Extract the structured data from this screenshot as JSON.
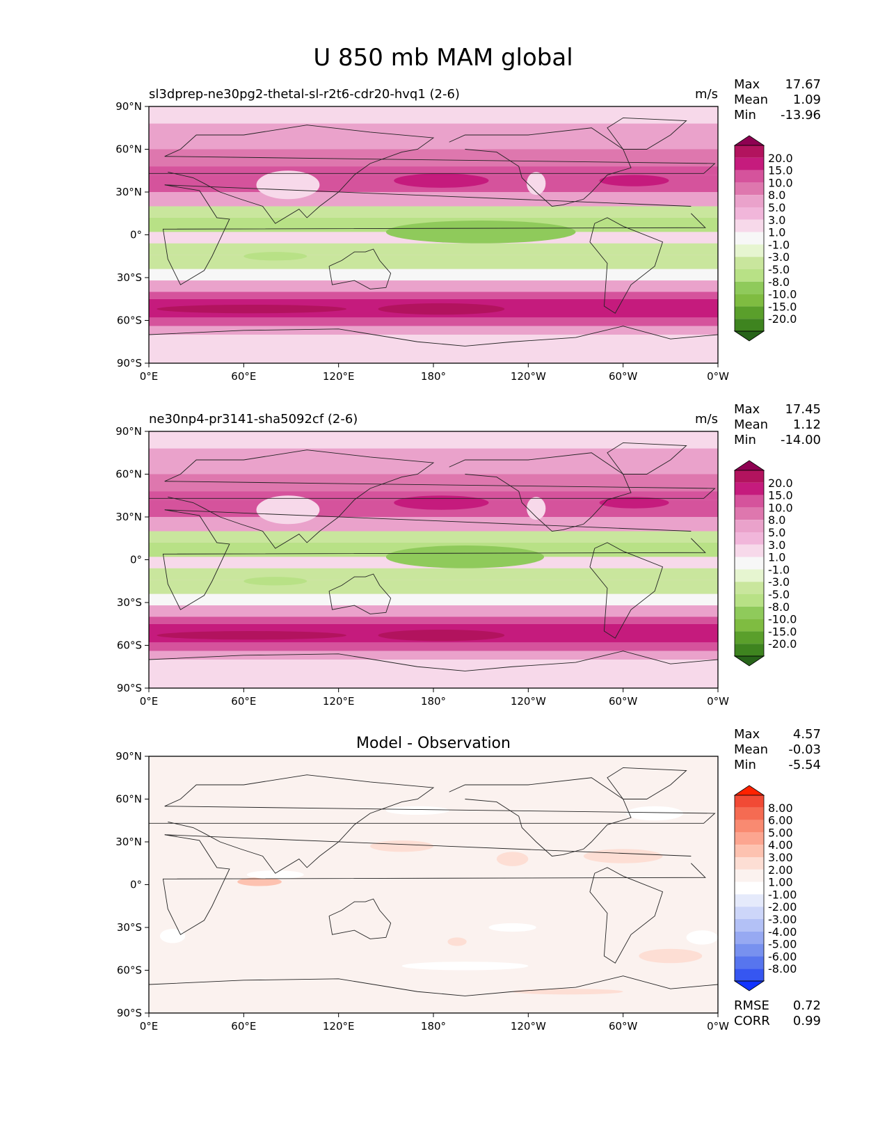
{
  "figure": {
    "title": "U 850 mb MAM global"
  },
  "chart_data": [
    {
      "type": "heatmap",
      "title": "sl3dprep-ne30pg2-thetal-sl-r2t6-cdr20-hvq1 (2-6)",
      "units": "m/s",
      "stats": {
        "max_label": "Max",
        "max": "17.67",
        "mean_label": "Mean",
        "mean": "1.09",
        "min_label": "Min",
        "min": "-13.96"
      },
      "x_ticks": [
        "0°E",
        "60°E",
        "120°E",
        "180°",
        "120°W",
        "60°W",
        "0°W"
      ],
      "y_ticks": [
        "90°N",
        "60°N",
        "30°N",
        "0°",
        "30°S",
        "60°S",
        "90°S"
      ],
      "xlim": [
        0,
        360
      ],
      "ylim": [
        -90,
        90
      ],
      "colorbar": {
        "levels": [
          "20.0",
          "15.0",
          "10.0",
          "8.0",
          "5.0",
          "3.0",
          "1.0",
          "-1.0",
          "-3.0",
          "-5.0",
          "-8.0",
          "-10.0",
          "-15.0",
          "-20.0"
        ],
        "colors": [
          "#8e0152",
          "#b2135e",
          "#c51b7d",
          "#d5539c",
          "#de77ae",
          "#eaa2cb",
          "#f1b6da",
          "#f7d9ea",
          "#f7f7f7",
          "#e6f5d0",
          "#c9e69d",
          "#b8e186",
          "#8fca5b",
          "#7fbc41",
          "#5a9f2b",
          "#3e841f",
          "#276419"
        ],
        "extend": "both"
      },
      "bands": [
        {
          "lat": [
            78,
            90
          ],
          "value": 0.5
        },
        {
          "lat": [
            60,
            78
          ],
          "value": 4
        },
        {
          "lat": [
            48,
            60
          ],
          "value": 7
        },
        {
          "lat": [
            42,
            48
          ],
          "value": 9
        },
        {
          "lat": [
            30,
            42
          ],
          "value": 8
        },
        {
          "lat": [
            20,
            30
          ],
          "value": 4
        },
        {
          "lat": [
            12,
            20
          ],
          "value": -6
        },
        {
          "lat": [
            2,
            12
          ],
          "value": -9
        },
        {
          "lat": [
            -6,
            2
          ],
          "value": 0
        },
        {
          "lat": [
            -14,
            -6
          ],
          "value": -6
        },
        {
          "lat": [
            -24,
            -14
          ],
          "value": -8
        },
        {
          "lat": [
            -32,
            -24
          ],
          "value": -3
        },
        {
          "lat": [
            -40,
            -32
          ],
          "value": 4
        },
        {
          "lat": [
            -45,
            -40
          ],
          "value": 9
        },
        {
          "lat": [
            -58,
            -45
          ],
          "value": 13
        },
        {
          "lat": [
            -64,
            -58
          ],
          "value": 9
        },
        {
          "lat": [
            -70,
            -64
          ],
          "value": 4
        },
        {
          "lat": [
            -90,
            -70
          ],
          "value": 0
        }
      ],
      "blobs": [
        {
          "lon": 185,
          "lat": 38,
          "rx": 30,
          "ry": 5,
          "value": 13
        },
        {
          "lon": 307,
          "lat": 38,
          "rx": 22,
          "ry": 4,
          "value": 13
        },
        {
          "lon": 88,
          "lat": 35,
          "rx": 20,
          "ry": 10,
          "value": 0
        },
        {
          "lon": 245,
          "lat": 36,
          "rx": 6,
          "ry": 8,
          "value": 0
        },
        {
          "lon": 210,
          "lat": 2,
          "rx": 60,
          "ry": 8,
          "value": -12
        },
        {
          "lon": 185,
          "lat": -52,
          "rx": 40,
          "ry": 4,
          "value": 16
        },
        {
          "lon": 65,
          "lat": -52,
          "rx": 60,
          "ry": 3,
          "value": 16
        },
        {
          "lon": 80,
          "lat": -15,
          "rx": 20,
          "ry": 3,
          "value": -10
        }
      ]
    },
    {
      "type": "heatmap",
      "title": "ne30np4-pr3141-sha5092cf (2-6)",
      "units": "m/s",
      "stats": {
        "max_label": "Max",
        "max": "17.45",
        "mean_label": "Mean",
        "mean": "1.12",
        "min_label": "Min",
        "min": "-14.00"
      },
      "x_ticks": [
        "0°E",
        "60°E",
        "120°E",
        "180°",
        "120°W",
        "60°W",
        "0°W"
      ],
      "y_ticks": [
        "90°N",
        "60°N",
        "30°N",
        "0°",
        "30°S",
        "60°S",
        "90°S"
      ],
      "xlim": [
        0,
        360
      ],
      "ylim": [
        -90,
        90
      ],
      "colorbar": {
        "levels": [
          "20.0",
          "15.0",
          "10.0",
          "8.0",
          "5.0",
          "3.0",
          "1.0",
          "-1.0",
          "-3.0",
          "-5.0",
          "-8.0",
          "-10.0",
          "-15.0",
          "-20.0"
        ],
        "colors": [
          "#8e0152",
          "#b2135e",
          "#c51b7d",
          "#d5539c",
          "#de77ae",
          "#eaa2cb",
          "#f1b6da",
          "#f7d9ea",
          "#f7f7f7",
          "#e6f5d0",
          "#c9e69d",
          "#b8e186",
          "#8fca5b",
          "#7fbc41",
          "#5a9f2b",
          "#3e841f",
          "#276419"
        ],
        "extend": "both"
      },
      "bands": [
        {
          "lat": [
            78,
            90
          ],
          "value": 0.5
        },
        {
          "lat": [
            60,
            78
          ],
          "value": 4
        },
        {
          "lat": [
            48,
            60
          ],
          "value": 7
        },
        {
          "lat": [
            42,
            48
          ],
          "value": 9
        },
        {
          "lat": [
            30,
            42
          ],
          "value": 8
        },
        {
          "lat": [
            20,
            30
          ],
          "value": 4
        },
        {
          "lat": [
            12,
            20
          ],
          "value": -6
        },
        {
          "lat": [
            2,
            12
          ],
          "value": -9
        },
        {
          "lat": [
            -6,
            2
          ],
          "value": 0
        },
        {
          "lat": [
            -14,
            -6
          ],
          "value": -6
        },
        {
          "lat": [
            -24,
            -14
          ],
          "value": -8
        },
        {
          "lat": [
            -32,
            -24
          ],
          "value": -3
        },
        {
          "lat": [
            -40,
            -32
          ],
          "value": 4
        },
        {
          "lat": [
            -45,
            -40
          ],
          "value": 9
        },
        {
          "lat": [
            -58,
            -45
          ],
          "value": 13
        },
        {
          "lat": [
            -64,
            -58
          ],
          "value": 9
        },
        {
          "lat": [
            -70,
            -64
          ],
          "value": 4
        },
        {
          "lat": [
            -90,
            -70
          ],
          "value": 0
        }
      ],
      "blobs": [
        {
          "lon": 185,
          "lat": 40,
          "rx": 30,
          "ry": 5,
          "value": 13
        },
        {
          "lon": 307,
          "lat": 40,
          "rx": 22,
          "ry": 4,
          "value": 13
        },
        {
          "lon": 88,
          "lat": 35,
          "rx": 20,
          "ry": 10,
          "value": 0
        },
        {
          "lon": 245,
          "lat": 36,
          "rx": 6,
          "ry": 8,
          "value": 0
        },
        {
          "lon": 200,
          "lat": 2,
          "rx": 50,
          "ry": 8,
          "value": -12
        },
        {
          "lon": 185,
          "lat": -53,
          "rx": 40,
          "ry": 4,
          "value": 16
        },
        {
          "lon": 65,
          "lat": -53,
          "rx": 60,
          "ry": 3,
          "value": 16
        },
        {
          "lon": 80,
          "lat": -15,
          "rx": 20,
          "ry": 3,
          "value": -10
        }
      ]
    },
    {
      "type": "heatmap",
      "title": "Model - Observation",
      "units": "",
      "stats": {
        "max_label": "Max",
        "max": "4.57",
        "mean_label": "Mean",
        "mean": "-0.03",
        "min_label": "Min",
        "min": "-5.54"
      },
      "metrics": {
        "rmse_label": "RMSE",
        "rmse": "0.72",
        "corr_label": "CORR",
        "corr": "0.99"
      },
      "x_ticks": [
        "0°E",
        "60°E",
        "120°E",
        "180°",
        "120°W",
        "60°W",
        "0°W"
      ],
      "y_ticks": [
        "90°N",
        "60°N",
        "30°N",
        "0°",
        "30°S",
        "60°S",
        "90°S"
      ],
      "xlim": [
        0,
        360
      ],
      "ylim": [
        -90,
        90
      ],
      "colorbar": {
        "levels": [
          "8.00",
          "6.00",
          "5.00",
          "4.00",
          "3.00",
          "2.00",
          "1.00",
          "-1.00",
          "-2.00",
          "-3.00",
          "-4.00",
          "-5.00",
          "-6.00",
          "-8.00"
        ],
        "colors": [
          "#ff2200",
          "#f14a35",
          "#f56b52",
          "#f98a71",
          "#fca590",
          "#fdc2b0",
          "#fdded4",
          "#fbf2ef",
          "#ffffff",
          "#e5eafb",
          "#cdd6f9",
          "#b3c1f6",
          "#97a9f2",
          "#7891ef",
          "#5775ee",
          "#3656f1",
          "#1133ff"
        ],
        "extend": "both"
      },
      "bands": [],
      "blobs": [
        {
          "lon": 70,
          "lat": 2,
          "rx": 14,
          "ry": 3,
          "value": 2.5
        },
        {
          "lon": 160,
          "lat": 27,
          "rx": 20,
          "ry": 4,
          "value": 1.5
        },
        {
          "lon": 230,
          "lat": 18,
          "rx": 10,
          "ry": 5,
          "value": 1.5
        },
        {
          "lon": 300,
          "lat": 20,
          "rx": 25,
          "ry": 5,
          "value": 1.8
        },
        {
          "lon": 320,
          "lat": 50,
          "rx": 18,
          "ry": 5,
          "value": -1.5
        },
        {
          "lon": 170,
          "lat": 52,
          "rx": 20,
          "ry": 3,
          "value": -1.5
        },
        {
          "lon": 80,
          "lat": 7,
          "rx": 18,
          "ry": 3,
          "value": -1.5
        },
        {
          "lon": 330,
          "lat": -50,
          "rx": 20,
          "ry": 5,
          "value": 1.5
        },
        {
          "lon": 200,
          "lat": -57,
          "rx": 40,
          "ry": 3,
          "value": -1.5
        },
        {
          "lon": 230,
          "lat": -30,
          "rx": 15,
          "ry": 3,
          "value": -1.5
        },
        {
          "lon": 195,
          "lat": -40,
          "rx": 6,
          "ry": 3,
          "value": 1.5
        },
        {
          "lon": 265,
          "lat": -75,
          "rx": 35,
          "ry": 2,
          "value": 1.5
        },
        {
          "lon": 15,
          "lat": -36,
          "rx": 8,
          "ry": 5,
          "value": -1.5
        },
        {
          "lon": 350,
          "lat": -37,
          "rx": 10,
          "ry": 5,
          "value": -1.5
        }
      ]
    }
  ]
}
